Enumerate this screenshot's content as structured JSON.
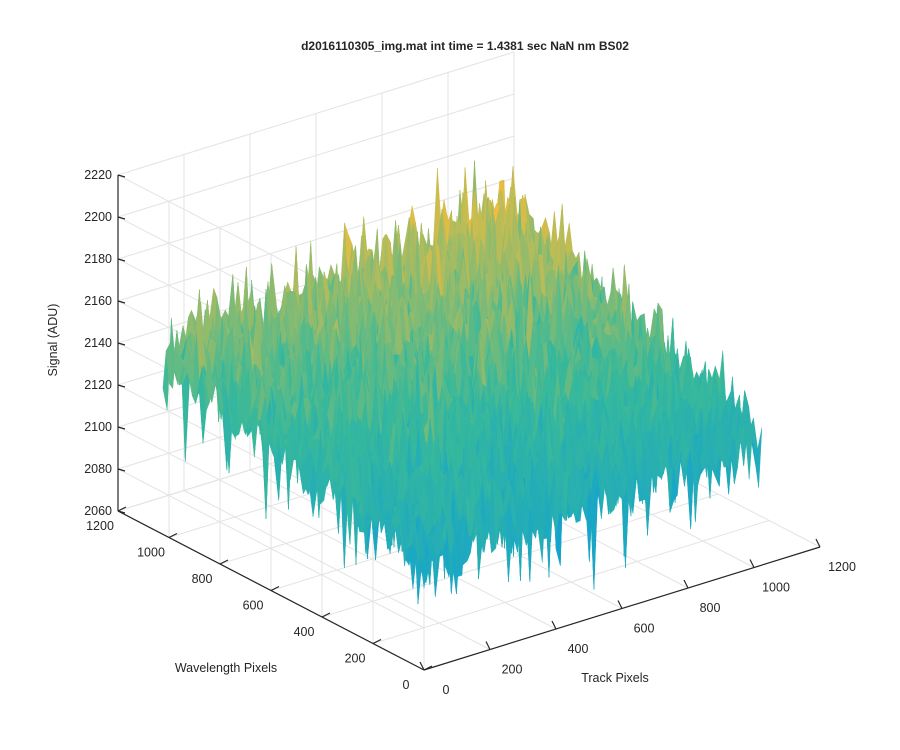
{
  "chart_data": {
    "type": "surface",
    "title": "d2016110305_img.mat int time = 1.4381 sec  NaN nm BS02",
    "xlabel": "Track Pixels",
    "ylabel": "Wavelength Pixels",
    "zlabel": "Signal (ADU)",
    "xlim": [
      0,
      1200
    ],
    "ylim": [
      0,
      1200
    ],
    "zlim": [
      2060,
      2220
    ],
    "x_ticks": [
      "0",
      "200",
      "400",
      "600",
      "800",
      "1000",
      "1200"
    ],
    "y_ticks": [
      "0",
      "200",
      "400",
      "600",
      "800",
      "1000",
      "1200"
    ],
    "z_ticks": [
      "2060",
      "2080",
      "2100",
      "2120",
      "2140",
      "2160",
      "2180",
      "2200",
      "2220"
    ],
    "grid": true,
    "colormap": "parula",
    "surface_extent": {
      "x": [
        0,
        1024
      ],
      "y": [
        0,
        1024
      ]
    },
    "corner_levels": [
      {
        "x": 0,
        "y": 0,
        "z": 2117
      },
      {
        "x": 1024,
        "y": 0,
        "z": 2120
      },
      {
        "x": 0,
        "y": 1024,
        "z": 2143
      },
      {
        "x": 1024,
        "y": 1024,
        "z": 2167
      }
    ],
    "noise_amplitude": 22,
    "colors": {
      "low": "#0d9fd8",
      "mid": "#38b99a",
      "high": "#f2bd3b"
    }
  }
}
